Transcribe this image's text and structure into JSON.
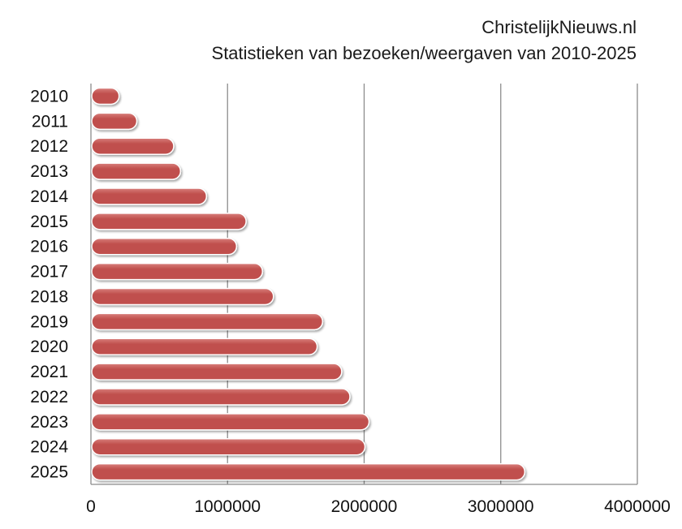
{
  "header": {
    "site": "ChristelijkNieuws.nl",
    "subtitle": "Statistieken van bezoeken/weergaven van 2010-2025"
  },
  "colors": {
    "bar": "#c0504d",
    "bar_highlight": "#d9807d",
    "grid": "#8c8c8c",
    "axis": "#8c8c8c"
  },
  "chart_data": {
    "type": "bar",
    "orientation": "horizontal",
    "title": "ChristelijkNieuws.nl",
    "subtitle": "Statistieken van bezoeken/weergaven van 2010-2025",
    "categories": [
      "2010",
      "2011",
      "2012",
      "2013",
      "2014",
      "2015",
      "2016",
      "2017",
      "2018",
      "2019",
      "2020",
      "2021",
      "2022",
      "2023",
      "2024",
      "2025"
    ],
    "values": [
      200000,
      330000,
      600000,
      650000,
      840000,
      1130000,
      1060000,
      1250000,
      1330000,
      1690000,
      1650000,
      1830000,
      1890000,
      2030000,
      2000000,
      3170000
    ],
    "xlim": [
      0,
      4000000
    ],
    "xticks": [
      "0",
      "1000000",
      "2000000",
      "3000000",
      "4000000"
    ],
    "xtick_values": [
      0,
      1000000,
      2000000,
      3000000,
      4000000
    ],
    "grid": "vertical",
    "legend": "none"
  }
}
